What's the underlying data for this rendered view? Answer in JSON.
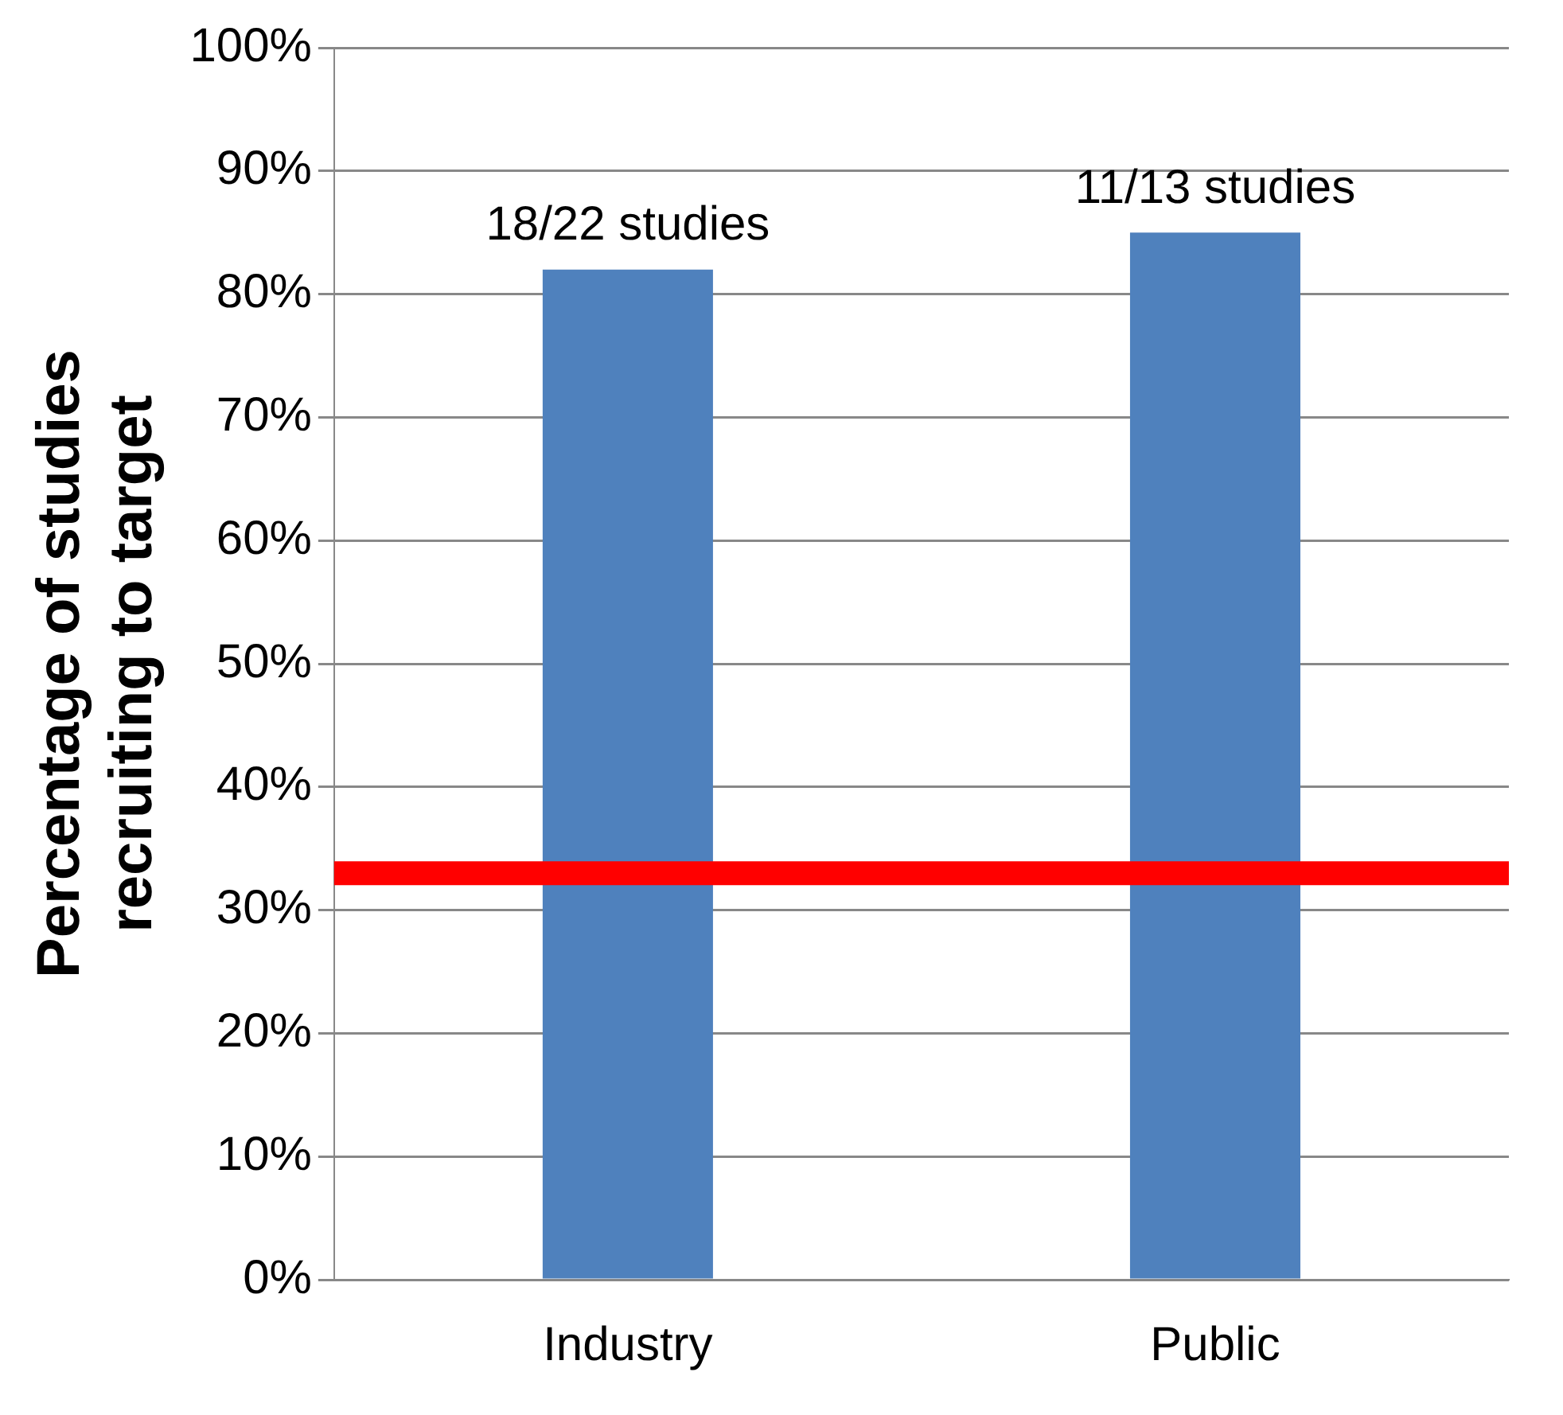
{
  "chart_data": {
    "type": "bar",
    "ylabel": "Percentage of studies recruiting to target",
    "categories": [
      "Industry",
      "Public"
    ],
    "values": [
      82,
      85
    ],
    "color": "#4f81bd",
    "value_labels": [
      "18/22 studies",
      "11/13 studies"
    ],
    "ylim": [
      0,
      100
    ],
    "yticks": [
      {
        "value": 0,
        "label": "0%"
      },
      {
        "value": 10,
        "label": "10%"
      },
      {
        "value": 20,
        "label": "20%"
      },
      {
        "value": 30,
        "label": "30%"
      },
      {
        "value": 40,
        "label": "40%"
      },
      {
        "value": 50,
        "label": "50%"
      },
      {
        "value": 60,
        "label": "60%"
      },
      {
        "value": 70,
        "label": "70%"
      },
      {
        "value": 80,
        "label": "80%"
      },
      {
        "value": 90,
        "label": "90%"
      },
      {
        "value": 100,
        "label": "100%"
      }
    ],
    "ref_lines": [
      {
        "axis": "y",
        "value": 33,
        "color": "#ff0000"
      }
    ],
    "grid": "y",
    "legend": false
  }
}
